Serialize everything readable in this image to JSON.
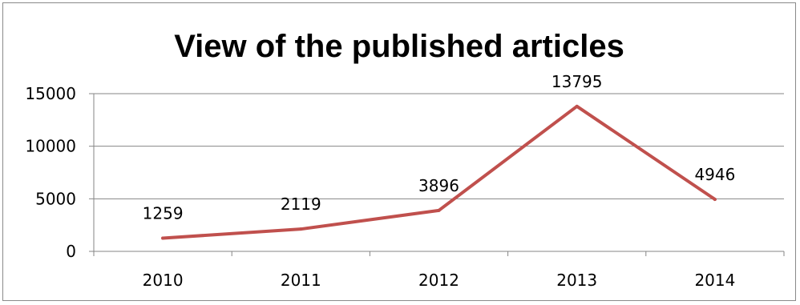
{
  "chart_data": {
    "type": "line",
    "title": "View of the published articles",
    "xlabel": "",
    "ylabel": "",
    "categories": [
      "2010",
      "2011",
      "2012",
      "2013",
      "2014"
    ],
    "series": [
      {
        "values": [
          1259,
          2119,
          3896,
          13795,
          4946
        ],
        "color": "#c0504d"
      }
    ],
    "data_labels": [
      "1259",
      "2119",
      "3896",
      "13795",
      "4946"
    ],
    "yticks": [
      0,
      5000,
      10000,
      15000
    ],
    "ytick_labels": [
      "0",
      "5000",
      "10000",
      "15000"
    ],
    "ylim": [
      0,
      15000
    ],
    "grid": true,
    "legend": "none"
  }
}
